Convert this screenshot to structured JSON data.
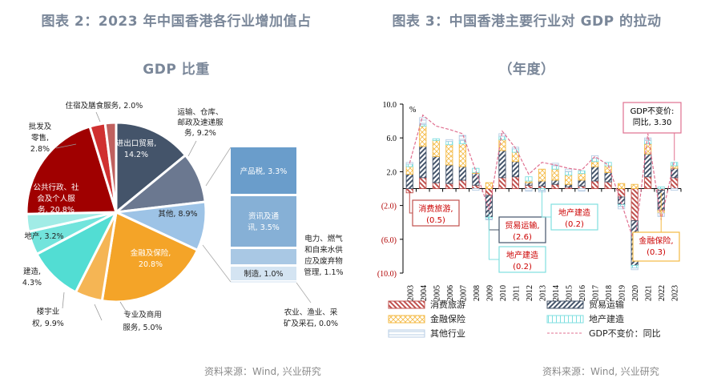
{
  "left": {
    "title_line1": "图表 2：2023 年中国香港各行业增加值占",
    "title_line2": "GDP 比重",
    "source": "资料来源：Wind, 兴业研究"
  },
  "right": {
    "title_line1": "图表 3：中国香港主要行业对 GDP 的拉动",
    "title_line2": "（年度）",
    "source": "资料来源：Wind, 兴业研究"
  },
  "chart_data": [
    {
      "type": "pie",
      "title": "2023 年中国香港各行业增加值占 GDP 比重",
      "slices": [
        {
          "label": "进出口贸易",
          "value": 14.2,
          "text": "进出口贸易, 14.2%",
          "color": "#44546a"
        },
        {
          "label": "运输、仓库、邮政及速递服务",
          "value": 9.2,
          "text": "运输、仓库、邮政及速递服务, 9.2%",
          "color": "#6b7890"
        },
        {
          "label": "其他",
          "value": 8.9,
          "text": "其他, 8.9%",
          "color": "#9dc3e6"
        },
        {
          "label": "金融及保险",
          "value": 20.8,
          "text": "金融及保险, 20.8%",
          "color": "#f4a428"
        },
        {
          "label": "专业及商用服务",
          "value": 5.0,
          "text": "专业及商用服务, 5.0%",
          "color": "#f5b554"
        },
        {
          "label": "楼宇业权",
          "value": 9.9,
          "text": "楼宇业权, 9.9%",
          "color": "#52ddd3"
        },
        {
          "label": "建造",
          "value": 4.3,
          "text": "建造, 4.3%",
          "color": "#72e4dc"
        },
        {
          "label": "地产",
          "value": 3.2,
          "text": "地产, 3.2%",
          "color": "#a1ece6"
        },
        {
          "label": "公共行政、社会及个人服务",
          "value": 20.8,
          "text": "公共行政、社会及个人服务, 20.8%",
          "color": "#a00000"
        },
        {
          "label": "批发及零售",
          "value": 2.8,
          "text": "批发及零售, 2.8%",
          "color": "#d03030"
        },
        {
          "label": "住宿及膳食服务",
          "value": 2.0,
          "text": "住宿及膳食服务, 2.0%",
          "color": "#c0605e"
        }
      ],
      "breakout": {
        "source_slice": "其他",
        "items": [
          {
            "label": "产品税",
            "value": 3.3,
            "text": "产品税, 3.3%",
            "color": "#6a9dcb"
          },
          {
            "label": "资讯及通讯",
            "value": 3.5,
            "text": "资讯及通讯, 3.5%",
            "color": "#86b0d6"
          },
          {
            "label": "电力、燃气和自来水供应及废弃物管理",
            "value": 1.1,
            "text": "电力、燃气和自来水供应及废弃物管理, 1.1%",
            "color": "#a9c8e4"
          },
          {
            "label": "制造",
            "value": 1.0,
            "text": "制造, 1.0%",
            "color": "#d4e4f2"
          },
          {
            "label": "农业、渔业、采矿及采石",
            "value": 0.0,
            "text": "农业、渔业、采矿及采石, 0.0%",
            "color": "#e8f0f8"
          }
        ]
      }
    },
    {
      "type": "bar",
      "stacked": true,
      "title": "中国香港主要行业对 GDP 的拉动（年度）",
      "ylabel": "%",
      "ylim": [
        -10,
        10
      ],
      "yticks": [
        10,
        6,
        2,
        -2,
        -6,
        -10
      ],
      "ytick_labels": [
        "10.0",
        "6.0",
        "2.0",
        "(2.0)",
        "(6.0)",
        "(10.0)"
      ],
      "categories": [
        "2003",
        "2004",
        "2005",
        "2006",
        "2007",
        "2008",
        "2009",
        "2010",
        "2011",
        "2012",
        "2013",
        "2014",
        "2015",
        "2016",
        "2017",
        "2018",
        "2019",
        "2020",
        "2021",
        "2022",
        "2023"
      ],
      "series": [
        {
          "name": "消费旅游",
          "color": "#c0504d",
          "pattern": "hatch-back",
          "values": [
            -0.5,
            1.3,
            0.7,
            0.6,
            1.0,
            0.4,
            -0.8,
            1.3,
            1.4,
            0.4,
            0.3,
            0.5,
            0.2,
            0.3,
            0.9,
            0.8,
            -1.0,
            -3.8,
            1.4,
            -0.2,
            1.3
          ]
        },
        {
          "name": "贸易运输",
          "color": "#44546a",
          "pattern": "hatch-fwd",
          "values": [
            1.7,
            3.7,
            3.1,
            2.2,
            1.6,
            1.4,
            -2.6,
            3.2,
            1.8,
            0.3,
            0.6,
            0.5,
            0.3,
            0.7,
            1.7,
            1.1,
            -0.9,
            -5.3,
            2.7,
            -2.4,
            1.1
          ]
        },
        {
          "name": "金融保险",
          "color": "#f4b942",
          "pattern": "cross",
          "values": [
            0.9,
            2.4,
            1.9,
            2.4,
            2.7,
            0.1,
            0.7,
            1.3,
            1.1,
            0.2,
            1.4,
            1.3,
            1.1,
            0.8,
            0.6,
            0.8,
            0.6,
            0.5,
            1.2,
            -0.3,
            0.3
          ]
        },
        {
          "name": "地产建造",
          "color": "#7fdfe0",
          "pattern": "grid",
          "values": [
            0.3,
            0.2,
            0.2,
            0.4,
            0.4,
            0.5,
            -0.2,
            0.4,
            0.4,
            0.5,
            -0.2,
            0.4,
            0.4,
            0.3,
            0.4,
            0.4,
            -0.2,
            -0.3,
            0.4,
            0.2,
            0.4
          ]
        },
        {
          "name": "其他行业",
          "color": "#b7cde4",
          "pattern": "lines",
          "values": [
            0.2,
            0.8,
            0.0,
            0.2,
            0.6,
            -0.2,
            -0.1,
            0.3,
            0.2,
            -0.3,
            -0.2,
            0.3,
            0.3,
            -0.3,
            0.3,
            0.0,
            -0.3,
            -0.2,
            0.3,
            -0.4,
            -0.2
          ]
        }
      ],
      "line": {
        "name": "GDP不变价：同比",
        "color": "#e07090",
        "values": [
          3.0,
          8.7,
          7.4,
          7.0,
          6.5,
          2.1,
          -2.5,
          6.8,
          4.8,
          1.7,
          3.1,
          2.8,
          2.4,
          2.2,
          3.8,
          2.8,
          -1.7,
          -6.5,
          6.5,
          -3.7,
          3.3
        ]
      },
      "annotations": [
        {
          "text_line1": "消费旅游,",
          "text_line2": "(0.5)",
          "target": "2003",
          "border": "#c0504d"
        },
        {
          "text_line1": "贸易运输,",
          "text_line2": "(2.6)",
          "target": "2009",
          "border": "#44546a"
        },
        {
          "text_line1": "地产建造",
          "text_line2": "(0.2)",
          "target": "2009",
          "border": "#7fdfe0"
        },
        {
          "text_line1": "地产建造",
          "text_line2": "(0.2)",
          "target": "2013",
          "border": "#7fdfe0"
        },
        {
          "text_line1": "金融保险,",
          "text_line2": "(0.3)",
          "target": "2022",
          "border": "#f4b942"
        },
        {
          "text_line1": "GDP不变价:",
          "text_line2": "同比, 3.30",
          "target": "2023",
          "border": "#e07090"
        }
      ],
      "legend": [
        "消费旅游",
        "贸易运输",
        "金融保险",
        "地产建造",
        "其他行业",
        "GDP不变价：同比"
      ],
      "legend_position": "bottom"
    }
  ]
}
